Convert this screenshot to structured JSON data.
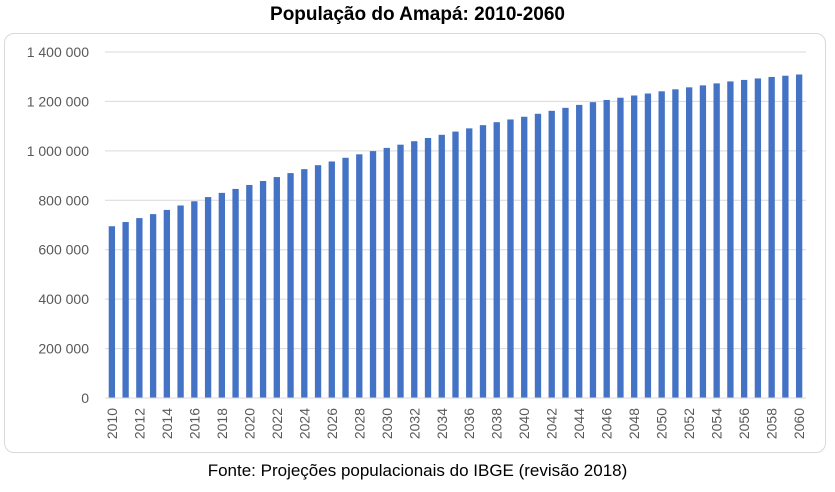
{
  "chart_data": {
    "type": "bar",
    "title": "População do Amapá: 2010-2060",
    "source": "Fonte: Projeções populacionais do IBGE (revisão 2018)",
    "xlabel": "",
    "ylabel": "",
    "ylim": [
      0,
      1400000
    ],
    "yticks": [
      0,
      200000,
      400000,
      600000,
      800000,
      1000000,
      1200000,
      1400000
    ],
    "ytick_labels": [
      "0",
      "200 000",
      "400 000",
      "600 000",
      "800 000",
      "1 000 000",
      "1 200 000",
      "1 400 000"
    ],
    "categories": [
      "2010",
      "2011",
      "2012",
      "2013",
      "2014",
      "2015",
      "2016",
      "2017",
      "2018",
      "2019",
      "2020",
      "2021",
      "2022",
      "2023",
      "2024",
      "2025",
      "2026",
      "2027",
      "2028",
      "2029",
      "2030",
      "2031",
      "2032",
      "2033",
      "2034",
      "2035",
      "2036",
      "2037",
      "2038",
      "2039",
      "2040",
      "2041",
      "2042",
      "2043",
      "2044",
      "2045",
      "2046",
      "2047",
      "2048",
      "2049",
      "2050",
      "2051",
      "2052",
      "2053",
      "2054",
      "2055",
      "2056",
      "2057",
      "2058",
      "2059",
      "2060"
    ],
    "xtick_labels": [
      "2010",
      "",
      "2012",
      "",
      "2014",
      "",
      "2016",
      "",
      "2018",
      "",
      "2020",
      "",
      "2022",
      "",
      "2024",
      "",
      "2026",
      "",
      "2028",
      "",
      "2030",
      "",
      "2032",
      "",
      "2034",
      "",
      "2036",
      "",
      "2038",
      "",
      "2040",
      "",
      "2042",
      "",
      "2044",
      "",
      "2046",
      "",
      "2048",
      "",
      "2050",
      "",
      "2052",
      "",
      "2054",
      "",
      "2056",
      "",
      "2058",
      "",
      "2060"
    ],
    "values": [
      695000,
      712000,
      728000,
      744000,
      761000,
      779000,
      796000,
      813000,
      830000,
      846000,
      862000,
      878000,
      894000,
      910000,
      926000,
      942000,
      957000,
      972000,
      986000,
      999000,
      1012000,
      1025000,
      1039000,
      1052000,
      1065000,
      1078000,
      1091000,
      1104000,
      1116000,
      1127000,
      1138000,
      1150000,
      1162000,
      1174000,
      1186000,
      1197000,
      1206000,
      1215000,
      1224000,
      1232000,
      1241000,
      1249000,
      1257000,
      1265000,
      1273000,
      1281000,
      1287000,
      1293000,
      1299000,
      1304000,
      1309000
    ],
    "grid": true,
    "legend": "none",
    "bar_color": "#4472c4",
    "grid_color": "#d9d9d9"
  }
}
